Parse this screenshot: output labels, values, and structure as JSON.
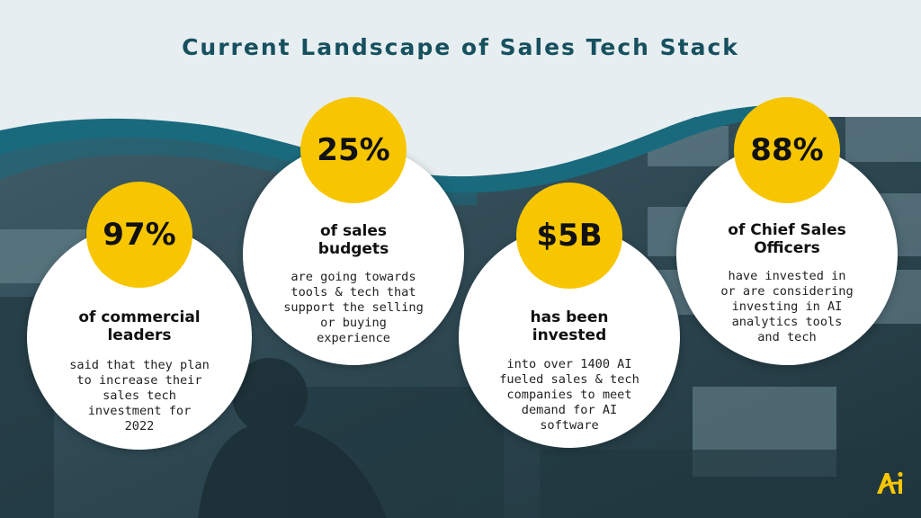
{
  "title": "Current Landscape of Sales Tech Stack",
  "colors": {
    "title": "#17505f",
    "badge": "#f7c600",
    "wave": "#1a6a7e",
    "photo_tint": "#2f4a55",
    "background": "#e6eef1"
  },
  "stats": [
    {
      "value": "97%",
      "headline": "of commercial\nleaders",
      "description": "said that they plan\nto increase their\nsales tech\ninvestment for\n2022"
    },
    {
      "value": "25%",
      "headline": "of sales\nbudgets",
      "description": "are going towards\ntools & tech that\nsupport the selling\nor buying\nexperience"
    },
    {
      "value": "$5B",
      "headline": "has been\ninvested",
      "description": "into over 1400 AI\nfueled sales & tech\ncompanies to meet\ndemand for AI\nsoftware"
    },
    {
      "value": "88%",
      "headline": "of Chief Sales\nOfficers",
      "description": "have invested in\nor are considering\ninvesting in AI\nanalytics tools\nand tech"
    }
  ],
  "logo": {
    "icon": "ai-logo-icon"
  }
}
